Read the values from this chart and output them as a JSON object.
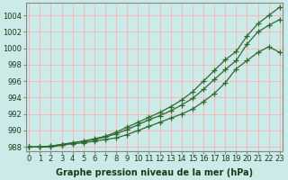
{
  "xlabel": "Graphe pression niveau de la mer (hPa)",
  "background_color": "#cceae8",
  "grid_color": "#ffb0b0",
  "line_color": "#2d6a2d",
  "hours": [
    0,
    1,
    2,
    3,
    4,
    5,
    6,
    7,
    8,
    9,
    10,
    11,
    12,
    13,
    14,
    15,
    16,
    17,
    18,
    19,
    20,
    21,
    22,
    23
  ],
  "line1": [
    988.0,
    988.0,
    988.1,
    988.3,
    988.5,
    988.7,
    989.0,
    989.3,
    989.8,
    990.4,
    991.0,
    991.6,
    992.2,
    992.9,
    993.7,
    994.7,
    996.0,
    997.3,
    998.6,
    999.6,
    1001.5,
    1003.0,
    1004.0,
    1005.0
  ],
  "line2": [
    988.0,
    988.0,
    988.1,
    988.3,
    988.5,
    988.7,
    988.9,
    989.2,
    989.6,
    990.1,
    990.7,
    991.3,
    991.8,
    992.4,
    993.1,
    993.9,
    995.0,
    996.2,
    997.4,
    998.5,
    1000.5,
    1002.0,
    1002.8,
    1003.5
  ],
  "line3": [
    988.0,
    988.0,
    988.0,
    988.2,
    988.4,
    988.5,
    988.7,
    988.9,
    989.1,
    989.5,
    990.0,
    990.5,
    991.0,
    991.5,
    992.0,
    992.6,
    993.5,
    994.5,
    995.8,
    997.5,
    998.5,
    999.5,
    1000.2,
    999.5
  ],
  "ylim_min": 987.5,
  "ylim_max": 1005.5,
  "yticks": [
    988,
    990,
    992,
    994,
    996,
    998,
    1000,
    1002,
    1004
  ],
  "xlim_min": -0.3,
  "xlim_max": 23.3,
  "marker": "+",
  "marker_size": 4,
  "line_width": 0.9,
  "tick_fontsize": 6.0,
  "xlabel_fontsize": 7.0
}
